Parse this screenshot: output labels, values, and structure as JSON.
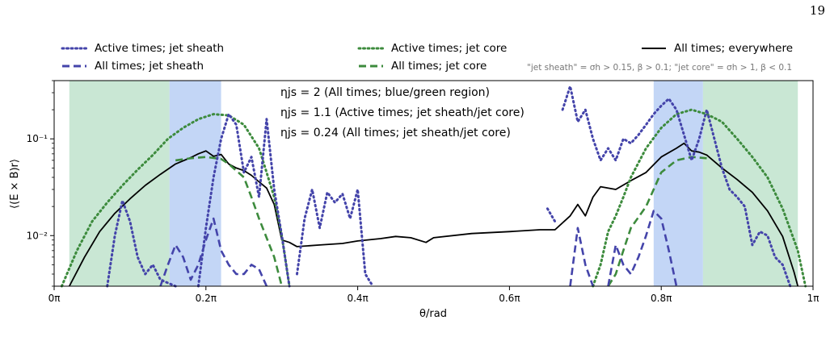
{
  "page": {
    "number": "19"
  },
  "legend": {
    "items": [
      {
        "label": "Active times; jet sheath",
        "color": "#4444aa",
        "style": "dotted"
      },
      {
        "label": "All times; jet sheath",
        "color": "#4444aa",
        "style": "dashed"
      },
      {
        "label": "Active times; jet core",
        "color": "#3d8b3d",
        "style": "dotted"
      },
      {
        "label": "All times; jet core",
        "color": "#3d8b3d",
        "style": "dashed"
      },
      {
        "label": "All times; everywhere",
        "color": "#000000",
        "style": "solid"
      }
    ],
    "definition": "\"jet sheath\" = σh > 0.15, β > 0.1; \"jet core\" = σh > 1, β < 0.1"
  },
  "annotations": [
    "ηjs = 2 (All times; blue/green region)",
    "ηjs = 1.1 (Active times; jet sheath/jet core)",
    "ηjs = 0.24 (All times; jet sheath/jet core)"
  ],
  "colors": {
    "sheath": "#4444aa",
    "core": "#3d8b3d",
    "sheath_fill": "#b9cff5",
    "core_fill": "#bfe3cc",
    "everywhere": "#000000"
  },
  "chart_data": {
    "type": "line",
    "xlabel": "θ/rad",
    "ylabel": "⟨(E × B)r⟩",
    "xlim": [
      0,
      1
    ],
    "xlim_units": "π",
    "ylog": true,
    "ylim": [
      0.003,
      0.4
    ],
    "xticks": [
      0,
      0.2,
      0.4,
      0.6,
      0.8,
      1
    ],
    "xtick_labels": [
      "0π",
      "0.2π",
      "0.4π",
      "0.6π",
      "0.8π",
      "1π"
    ],
    "yticks": [
      0.01,
      0.1
    ],
    "ytick_labels": [
      "10⁻²",
      "10⁻¹"
    ],
    "shaded_regions": [
      {
        "name": "jet core",
        "x": [
          0.02,
          0.152
        ],
        "color": "#bfe3cc"
      },
      {
        "name": "jet sheath",
        "x": [
          0.152,
          0.22
        ],
        "color": "#b9cff5"
      },
      {
        "name": "jet sheath",
        "x": [
          0.79,
          0.855
        ],
        "color": "#b9cff5"
      },
      {
        "name": "jet core",
        "x": [
          0.855,
          0.98
        ],
        "color": "#bfe3cc"
      }
    ],
    "series": [
      {
        "name": "All times; everywhere",
        "style": "solid",
        "color": "#000000",
        "segments": [
          [
            [
              0.02,
              0.003
            ],
            [
              0.04,
              0.006
            ],
            [
              0.06,
              0.011
            ],
            [
              0.08,
              0.017
            ],
            [
              0.1,
              0.024
            ],
            [
              0.12,
              0.033
            ],
            [
              0.14,
              0.043
            ],
            [
              0.16,
              0.055
            ],
            [
              0.18,
              0.064
            ],
            [
              0.19,
              0.07
            ],
            [
              0.2,
              0.075
            ],
            [
              0.21,
              0.066
            ],
            [
              0.22,
              0.069
            ],
            [
              0.23,
              0.055
            ],
            [
              0.24,
              0.05
            ],
            [
              0.25,
              0.047
            ],
            [
              0.26,
              0.042
            ],
            [
              0.27,
              0.036
            ],
            [
              0.28,
              0.031
            ],
            [
              0.29,
              0.021
            ],
            [
              0.3,
              0.009
            ],
            [
              0.31,
              0.0085
            ],
            [
              0.32,
              0.0077
            ],
            [
              0.35,
              0.008
            ],
            [
              0.38,
              0.0083
            ],
            [
              0.4,
              0.0088
            ],
            [
              0.43,
              0.0093
            ],
            [
              0.45,
              0.0098
            ],
            [
              0.47,
              0.0095
            ],
            [
              0.49,
              0.0085
            ],
            [
              0.5,
              0.0095
            ],
            [
              0.55,
              0.0105
            ],
            [
              0.6,
              0.011
            ],
            [
              0.64,
              0.0115
            ],
            [
              0.66,
              0.0115
            ],
            [
              0.68,
              0.016
            ],
            [
              0.69,
              0.021
            ],
            [
              0.7,
              0.016
            ],
            [
              0.71,
              0.025
            ],
            [
              0.72,
              0.032
            ],
            [
              0.74,
              0.03
            ],
            [
              0.76,
              0.037
            ],
            [
              0.78,
              0.045
            ],
            [
              0.8,
              0.065
            ],
            [
              0.82,
              0.08
            ],
            [
              0.83,
              0.09
            ],
            [
              0.84,
              0.075
            ],
            [
              0.85,
              0.073
            ],
            [
              0.86,
              0.068
            ],
            [
              0.88,
              0.05
            ],
            [
              0.9,
              0.038
            ],
            [
              0.92,
              0.028
            ],
            [
              0.94,
              0.018
            ],
            [
              0.96,
              0.0098
            ],
            [
              0.975,
              0.0042
            ],
            [
              0.98,
              0.003
            ]
          ]
        ]
      },
      {
        "name": "Active times; jet core",
        "style": "dotted",
        "color": "#3d8b3d",
        "segments": [
          [
            [
              0.01,
              0.003
            ],
            [
              0.03,
              0.007
            ],
            [
              0.05,
              0.014
            ],
            [
              0.07,
              0.022
            ],
            [
              0.09,
              0.033
            ],
            [
              0.11,
              0.048
            ],
            [
              0.13,
              0.068
            ],
            [
              0.15,
              0.1
            ],
            [
              0.17,
              0.13
            ],
            [
              0.19,
              0.16
            ],
            [
              0.21,
              0.18
            ],
            [
              0.23,
              0.175
            ],
            [
              0.25,
              0.14
            ],
            [
              0.27,
              0.08
            ],
            [
              0.28,
              0.045
            ],
            [
              0.29,
              0.025
            ],
            [
              0.3,
              0.01
            ],
            [
              0.31,
              0.003
            ]
          ],
          [
            [
              0.71,
              0.003
            ],
            [
              0.72,
              0.005
            ],
            [
              0.73,
              0.011
            ],
            [
              0.74,
              0.016
            ],
            [
              0.75,
              0.025
            ],
            [
              0.76,
              0.04
            ],
            [
              0.78,
              0.08
            ],
            [
              0.8,
              0.13
            ],
            [
              0.82,
              0.18
            ],
            [
              0.84,
              0.2
            ],
            [
              0.86,
              0.18
            ],
            [
              0.88,
              0.15
            ],
            [
              0.9,
              0.1
            ],
            [
              0.92,
              0.065
            ],
            [
              0.94,
              0.04
            ],
            [
              0.96,
              0.019
            ],
            [
              0.98,
              0.007
            ],
            [
              0.99,
              0.003
            ]
          ]
        ]
      },
      {
        "name": "All times; jet core",
        "style": "dashed",
        "color": "#3d8b3d",
        "segments": [
          [
            [
              0.16,
              0.06
            ],
            [
              0.18,
              0.063
            ],
            [
              0.2,
              0.065
            ],
            [
              0.22,
              0.062
            ],
            [
              0.23,
              0.055
            ],
            [
              0.25,
              0.04
            ],
            [
              0.26,
              0.025
            ],
            [
              0.27,
              0.015
            ],
            [
              0.29,
              0.006
            ],
            [
              0.3,
              0.003
            ]
          ],
          [
            [
              0.73,
              0.003
            ],
            [
              0.74,
              0.004
            ],
            [
              0.75,
              0.007
            ],
            [
              0.76,
              0.012
            ],
            [
              0.78,
              0.02
            ],
            [
              0.79,
              0.03
            ],
            [
              0.8,
              0.045
            ],
            [
              0.82,
              0.06
            ],
            [
              0.84,
              0.065
            ],
            [
              0.86,
              0.063
            ]
          ]
        ]
      },
      {
        "name": "Active times; jet sheath",
        "style": "dotted",
        "color": "#4444aa",
        "segments": [
          [
            [
              0.07,
              0.003
            ],
            [
              0.08,
              0.01
            ],
            [
              0.09,
              0.023
            ],
            [
              0.1,
              0.014
            ],
            [
              0.11,
              0.006
            ],
            [
              0.12,
              0.004
            ],
            [
              0.13,
              0.005
            ],
            [
              0.14,
              0.0035
            ],
            [
              0.16,
              0.003
            ]
          ],
          [
            [
              0.19,
              0.003
            ],
            [
              0.2,
              0.012
            ],
            [
              0.21,
              0.04
            ],
            [
              0.22,
              0.1
            ],
            [
              0.23,
              0.18
            ],
            [
              0.24,
              0.14
            ],
            [
              0.25,
              0.045
            ],
            [
              0.26,
              0.065
            ],
            [
              0.27,
              0.025
            ],
            [
              0.28,
              0.16
            ],
            [
              0.29,
              0.03
            ],
            [
              0.3,
              0.01
            ],
            [
              0.31,
              0.003
            ]
          ],
          [
            [
              0.32,
              0.004
            ],
            [
              0.33,
              0.015
            ],
            [
              0.34,
              0.03
            ],
            [
              0.35,
              0.012
            ],
            [
              0.36,
              0.028
            ],
            [
              0.37,
              0.022
            ],
            [
              0.38,
              0.027
            ],
            [
              0.39,
              0.015
            ],
            [
              0.4,
              0.03
            ],
            [
              0.41,
              0.004
            ],
            [
              0.42,
              0.003
            ]
          ],
          [
            [
              0.65,
              0.019
            ],
            [
              0.66,
              0.014
            ]
          ],
          [
            [
              0.67,
              0.2
            ],
            [
              0.68,
              0.35
            ],
            [
              0.69,
              0.15
            ],
            [
              0.7,
              0.2
            ],
            [
              0.71,
              0.1
            ],
            [
              0.72,
              0.06
            ],
            [
              0.73,
              0.08
            ],
            [
              0.74,
              0.06
            ],
            [
              0.75,
              0.1
            ],
            [
              0.76,
              0.09
            ],
            [
              0.77,
              0.11
            ],
            [
              0.78,
              0.14
            ],
            [
              0.79,
              0.18
            ],
            [
              0.8,
              0.22
            ],
            [
              0.81,
              0.26
            ],
            [
              0.82,
              0.2
            ],
            [
              0.83,
              0.11
            ],
            [
              0.84,
              0.06
            ],
            [
              0.85,
              0.1
            ],
            [
              0.86,
              0.2
            ],
            [
              0.87,
              0.1
            ],
            [
              0.88,
              0.05
            ],
            [
              0.89,
              0.03
            ],
            [
              0.9,
              0.025
            ],
            [
              0.91,
              0.02
            ],
            [
              0.92,
              0.008
            ],
            [
              0.93,
              0.011
            ],
            [
              0.94,
              0.01
            ],
            [
              0.95,
              0.006
            ],
            [
              0.96,
              0.005
            ],
            [
              0.97,
              0.003
            ]
          ]
        ]
      },
      {
        "name": "All times; jet sheath",
        "style": "dashed",
        "color": "#4444aa",
        "segments": [
          [
            [
              0.14,
              0.003
            ],
            [
              0.15,
              0.005
            ],
            [
              0.16,
              0.008
            ],
            [
              0.17,
              0.006
            ],
            [
              0.18,
              0.0035
            ],
            [
              0.19,
              0.005
            ],
            [
              0.2,
              0.009
            ],
            [
              0.21,
              0.015
            ],
            [
              0.22,
              0.007
            ],
            [
              0.23,
              0.005
            ],
            [
              0.24,
              0.004
            ],
            [
              0.25,
              0.004
            ],
            [
              0.26,
              0.005
            ],
            [
              0.27,
              0.0045
            ],
            [
              0.28,
              0.003
            ]
          ],
          [
            [
              0.68,
              0.003
            ],
            [
              0.69,
              0.012
            ],
            [
              0.7,
              0.005
            ],
            [
              0.71,
              0.003
            ]
          ],
          [
            [
              0.73,
              0.003
            ],
            [
              0.74,
              0.008
            ],
            [
              0.75,
              0.005
            ],
            [
              0.76,
              0.004
            ],
            [
              0.77,
              0.006
            ],
            [
              0.78,
              0.01
            ],
            [
              0.79,
              0.018
            ],
            [
              0.8,
              0.015
            ],
            [
              0.81,
              0.007
            ],
            [
              0.82,
              0.003
            ]
          ]
        ]
      }
    ]
  }
}
